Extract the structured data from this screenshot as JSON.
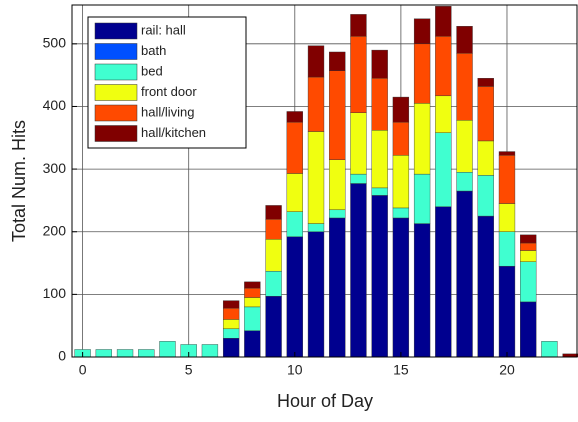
{
  "chart_data": {
    "type": "stacked_bar",
    "xlabel": "Hour of Day",
    "ylabel": "Total Num. Hits",
    "x": [
      0,
      1,
      2,
      3,
      4,
      5,
      6,
      7,
      8,
      9,
      10,
      11,
      12,
      13,
      14,
      15,
      16,
      17,
      18,
      19,
      20,
      21,
      22,
      23
    ],
    "xlim": [
      -0.5,
      23.3
    ],
    "xticks": [
      0,
      5,
      10,
      15,
      20
    ],
    "ylim": [
      0,
      562
    ],
    "yticks": [
      0,
      100,
      200,
      300,
      400,
      500
    ],
    "grid": true,
    "legend": "upper left",
    "series": [
      {
        "name": "rail: hall",
        "color": "#00008f",
        "values": [
          0,
          0,
          0,
          0,
          0,
          0,
          0,
          30,
          42,
          97,
          192,
          200,
          222,
          277,
          258,
          222,
          213,
          240,
          265,
          225,
          145,
          88,
          0,
          0
        ]
      },
      {
        "name": "bath",
        "color": "#0050ff",
        "values": [
          0,
          0,
          0,
          0,
          0,
          0,
          0,
          0,
          0,
          0,
          0,
          0,
          0,
          0,
          0,
          0,
          0,
          0,
          0,
          0,
          0,
          0,
          0,
          0
        ]
      },
      {
        "name": "bed",
        "color": "#40ffd0",
        "values": [
          12,
          12,
          12,
          12,
          25,
          20,
          20,
          15,
          38,
          40,
          40,
          13,
          13,
          15,
          12,
          16,
          79,
          118,
          30,
          65,
          55,
          64,
          25,
          0
        ]
      },
      {
        "name": "front door",
        "color": "#f0ff10",
        "values": [
          0,
          0,
          0,
          0,
          0,
          0,
          0,
          15,
          15,
          51,
          61,
          147,
          80,
          98,
          92,
          84,
          113,
          59,
          83,
          55,
          45,
          18,
          0,
          0
        ]
      },
      {
        "name": "hall/living",
        "color": "#ff4a00",
        "values": [
          0,
          0,
          0,
          0,
          0,
          0,
          0,
          18,
          15,
          32,
          82,
          87,
          142,
          122,
          83,
          53,
          95,
          95,
          107,
          87,
          77,
          12,
          0,
          0
        ]
      },
      {
        "name": "hall/kitchen",
        "color": "#800000",
        "values": [
          0,
          0,
          0,
          0,
          0,
          0,
          0,
          12,
          10,
          22,
          17,
          50,
          30,
          35,
          45,
          40,
          40,
          48,
          43,
          13,
          6,
          13,
          0,
          5
        ]
      }
    ]
  }
}
